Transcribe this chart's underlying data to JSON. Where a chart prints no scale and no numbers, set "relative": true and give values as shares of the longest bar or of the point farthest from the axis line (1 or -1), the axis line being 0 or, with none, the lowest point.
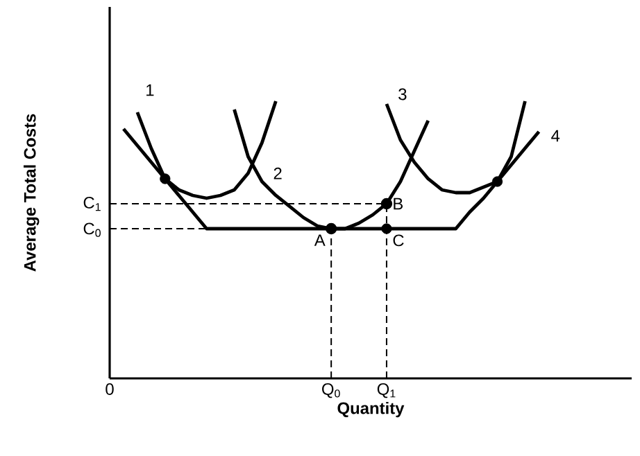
{
  "chart_data": {
    "type": "line",
    "relative": true,
    "xlabel": "Quantity",
    "ylabel": "Average Total Costs",
    "categories": [
      "0",
      null,
      null,
      null,
      null,
      null,
      null,
      null,
      null,
      null,
      null,
      null,
      null,
      null,
      null,
      null,
      "Q$_{0}$",
      null,
      null,
      null,
      "Q$_{1}$",
      null,
      null,
      null,
      null,
      null,
      null,
      null,
      null,
      null,
      null,
      null,
      null,
      null,
      null,
      null,
      null,
      null
    ],
    "grid": false,
    "marker": "none",
    "line_style": "solid",
    "series": [
      {
        "color": "#000000",
        "values": [
          null,
          null,
          0.96,
          0.83,
          0.72,
          0.68,
          0.66,
          0.65,
          0.66,
          0.68,
          0.74,
          0.85,
          1.0,
          null,
          null,
          null,
          null,
          null,
          null,
          null,
          null,
          null,
          null,
          null,
          null,
          null,
          null,
          null,
          null,
          null,
          null,
          null,
          null,
          null,
          null,
          null,
          null,
          null
        ]
      },
      {
        "color": "#000000",
        "values": [
          null,
          null,
          null,
          null,
          null,
          null,
          null,
          null,
          null,
          0.97,
          0.8,
          0.71,
          0.66,
          0.62,
          0.58,
          0.55,
          0.54,
          0.54,
          0.56,
          0.59,
          0.63,
          0.71,
          0.82,
          0.93,
          null,
          null,
          null,
          null,
          null,
          null,
          null,
          null,
          null,
          null,
          null,
          null,
          null,
          null
        ]
      },
      {
        "color": "#000000",
        "values": [
          null,
          null,
          null,
          null,
          null,
          null,
          null,
          null,
          null,
          null,
          null,
          null,
          null,
          null,
          null,
          null,
          null,
          null,
          null,
          null,
          0.99,
          0.86,
          0.78,
          0.72,
          0.68,
          0.67,
          0.67,
          0.69,
          0.71,
          0.8,
          1.0,
          null,
          null,
          null,
          null,
          null,
          null,
          null
        ]
      },
      {
        "color": "#000000",
        "values": [
          null,
          0.9,
          0.84,
          0.78,
          0.72,
          0.66,
          0.6,
          0.54,
          0.54,
          0.54,
          0.54,
          0.54,
          0.54,
          0.54,
          0.54,
          0.54,
          0.54,
          0.54,
          0.54,
          0.54,
          0.54,
          0.54,
          0.54,
          0.54,
          0.54,
          0.54,
          0.6,
          0.65,
          0.71,
          0.77,
          0.83,
          0.89,
          null,
          null,
          null,
          null,
          null,
          null
        ]
      },
      {
        "color": "#000000",
        "line_style": "dashed",
        "values": [
          0.63,
          0.63,
          0.63,
          0.63,
          0.63,
          0.63,
          0.63,
          0.63,
          0.63,
          0.63,
          0.63,
          0.63,
          0.63,
          0.63,
          0.63,
          0.63,
          0.63,
          0.63,
          0.63,
          0.63,
          0.63,
          null,
          null,
          null,
          null,
          null,
          null,
          null,
          null,
          null,
          null,
          null,
          null,
          null,
          null,
          null,
          null,
          null
        ]
      },
      {
        "color": "#000000",
        "line_style": "dashed",
        "values": [
          0.54,
          0.54,
          0.54,
          0.54,
          0.54,
          0.54,
          0.54,
          0.54,
          null,
          null,
          null,
          null,
          null,
          null,
          null,
          null,
          null,
          null,
          null,
          null,
          null,
          null,
          null,
          null,
          null,
          null,
          null,
          null,
          null,
          null,
          null,
          null,
          null,
          null,
          null,
          null,
          null,
          null
        ]
      },
      {
        "type": "lollipop",
        "line_style": "dashed",
        "marker": "circle",
        "color": "#000000",
        "values": [
          null,
          null,
          null,
          null,
          null,
          null,
          null,
          null,
          null,
          null,
          null,
          null,
          null,
          null,
          null,
          null,
          0.54,
          null,
          null,
          null,
          0.63,
          null,
          null,
          null,
          null,
          null,
          null,
          null,
          null,
          null,
          null,
          null,
          null,
          null,
          null,
          null,
          null,
          null
        ]
      },
      {
        "type": "scatter",
        "marker": "circle",
        "color": "#000000",
        "values": [
          null,
          null,
          null,
          null,
          0.72,
          null,
          null,
          null,
          null,
          null,
          null,
          null,
          null,
          null,
          null,
          null,
          null,
          null,
          null,
          null,
          0.54,
          null,
          null,
          null,
          null,
          null,
          null,
          null,
          0.71,
          null,
          null,
          null,
          null,
          null,
          null,
          null,
          null,
          null
        ]
      }
    ],
    "annotations": [
      "1",
      "2",
      "3",
      "4",
      "C$_{1}$",
      "C$_{0}$",
      {
        "text": "A",
        "x": "Q$_{0}$",
        "y": 0.54
      },
      {
        "text": "B",
        "x": "Q$_{1}$",
        "y": 0.63
      },
      {
        "text": "C",
        "x": "Q$_{1}$",
        "y": 0.54
      }
    ]
  }
}
